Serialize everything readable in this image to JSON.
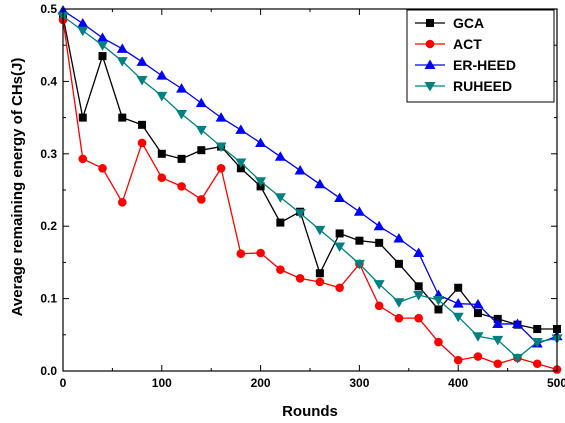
{
  "chart_data": {
    "type": "line",
    "xlabel": "Rounds",
    "ylabel": "Average remaining energy of CHs(J)",
    "xlim": [
      0,
      500
    ],
    "ylim": [
      0.0,
      0.5
    ],
    "x_ticks": [
      0,
      100,
      200,
      300,
      400,
      500
    ],
    "y_ticks": [
      0.0,
      0.1,
      0.2,
      0.3,
      0.4,
      0.5
    ],
    "x_tick_labels": [
      "0",
      "100",
      "200",
      "300",
      "400",
      "500"
    ],
    "y_tick_labels": [
      "0.0",
      "0.1",
      "0.2",
      "0.3",
      "0.4",
      "0.5"
    ],
    "grid": false,
    "legend_position": "top-right",
    "x": [
      0,
      20,
      40,
      60,
      80,
      100,
      120,
      140,
      160,
      180,
      200,
      220,
      240,
      260,
      280,
      300,
      320,
      340,
      360,
      380,
      400,
      420,
      440,
      460,
      480,
      500
    ],
    "series": [
      {
        "name": "GCA",
        "color": "#000000",
        "marker": "square",
        "values": [
          0.49,
          0.35,
          0.435,
          0.35,
          0.34,
          0.3,
          0.293,
          0.305,
          0.31,
          0.28,
          0.255,
          0.205,
          0.22,
          0.135,
          0.19,
          0.18,
          0.177,
          0.148,
          0.117,
          0.085,
          0.115,
          0.08,
          0.072,
          0.064,
          0.058,
          0.058
        ]
      },
      {
        "name": "ACT",
        "color": "#ff0000",
        "marker": "circle",
        "values": [
          0.485,
          0.293,
          0.28,
          0.233,
          0.315,
          0.267,
          0.255,
          0.237,
          0.28,
          0.162,
          0.163,
          0.14,
          0.128,
          0.123,
          0.115,
          0.148,
          0.09,
          0.073,
          0.073,
          0.04,
          0.015,
          0.02,
          0.01,
          0.018,
          0.01,
          0.002
        ]
      },
      {
        "name": "ER-HEED",
        "color": "#0000ff",
        "marker": "triangle-up",
        "values": [
          0.498,
          0.48,
          0.46,
          0.445,
          0.427,
          0.408,
          0.39,
          0.37,
          0.35,
          0.333,
          0.315,
          0.296,
          0.277,
          0.258,
          0.239,
          0.22,
          0.2,
          0.183,
          0.163,
          0.105,
          0.093,
          0.092,
          0.065,
          0.065,
          0.038,
          0.048
        ]
      },
      {
        "name": "RUHEED",
        "color": "#008080",
        "marker": "triangle-down",
        "values": [
          0.49,
          0.47,
          0.45,
          0.428,
          0.402,
          0.38,
          0.355,
          0.333,
          0.31,
          0.288,
          0.262,
          0.24,
          0.218,
          0.195,
          0.172,
          0.148,
          0.12,
          0.095,
          0.105,
          0.098,
          0.075,
          0.048,
          0.043,
          0.018,
          0.04,
          0.045
        ]
      }
    ]
  }
}
